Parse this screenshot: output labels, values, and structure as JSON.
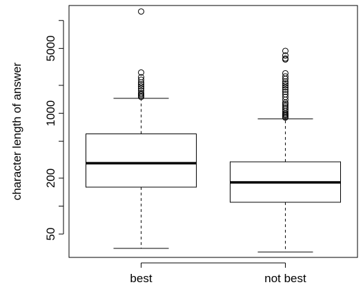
{
  "chart_data": {
    "type": "boxplot",
    "ylabel": "character length of answer",
    "y_scale": "log",
    "ylim": [
      28,
      14500
    ],
    "yticks": [
      50,
      200,
      1000,
      5000
    ],
    "yticks_minor": [
      100,
      500,
      2000,
      10000
    ],
    "categories": [
      "best",
      "not best"
    ],
    "boxes": [
      {
        "name": "best",
        "whisker_low": 35,
        "q1": 160,
        "median": 290,
        "q3": 600,
        "whisker_high": 1450,
        "outliers": [
          12500,
          2750,
          2450,
          2300,
          2150,
          2050,
          1950,
          1850,
          1750,
          1650,
          1600,
          1550,
          1500
        ]
      },
      {
        "name": "not best",
        "whisker_low": 32,
        "q1": 110,
        "median": 180,
        "q3": 300,
        "whisker_high": 870,
        "outliers": [
          4700,
          4200,
          3900,
          3800,
          2700,
          2500,
          2350,
          2200,
          2100,
          2000,
          1900,
          1800,
          1700,
          1600,
          1500,
          1400,
          1300,
          1250,
          1200,
          1150,
          1100,
          1050,
          1000,
          970,
          950,
          920,
          900
        ]
      }
    ]
  }
}
